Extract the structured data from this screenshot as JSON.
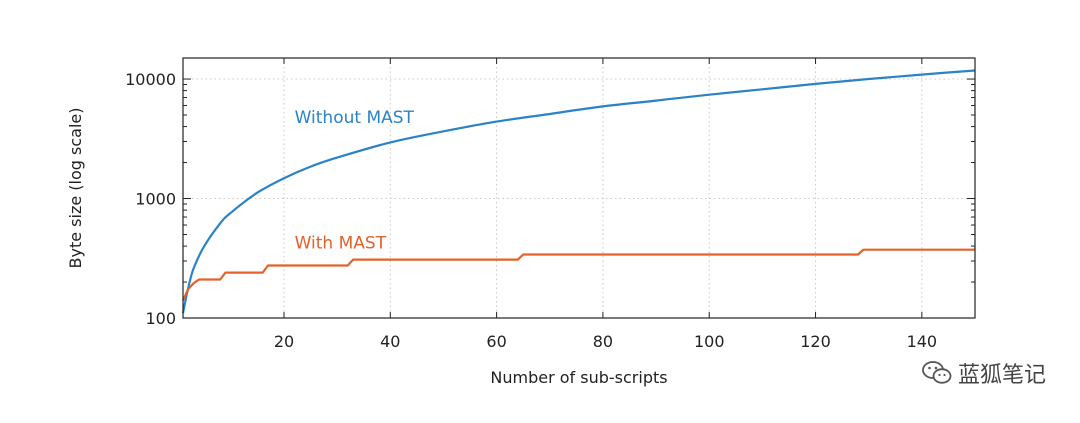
{
  "chart_data": {
    "type": "line",
    "xlabel": "Number of sub-scripts",
    "ylabel": "Byte size (log scale)",
    "xlim": [
      1,
      150
    ],
    "ylim": [
      100,
      15000
    ],
    "yscale": "log",
    "grid": true,
    "x_ticks": [
      20,
      40,
      60,
      80,
      100,
      120,
      140
    ],
    "y_ticks": [
      100,
      1000,
      10000
    ],
    "series": [
      {
        "name": "Without MAST",
        "color": "#2b83c6",
        "x": [
          1,
          2,
          3,
          5,
          8,
          10,
          15,
          20,
          25,
          30,
          40,
          50,
          60,
          70,
          80,
          90,
          100,
          110,
          120,
          130,
          140,
          150
        ],
        "y": [
          110,
          180,
          260,
          400,
          620,
          760,
          1120,
          1480,
          1850,
          2200,
          2950,
          3650,
          4400,
          5100,
          5900,
          6600,
          7400,
          8200,
          9100,
          10000,
          10900,
          11800
        ]
      },
      {
        "name": "With MAST",
        "color": "#e2622a",
        "x": [
          1,
          2,
          3,
          4,
          4,
          8,
          9,
          16,
          17,
          32,
          33,
          64,
          65,
          128,
          129,
          150
        ],
        "y": [
          140,
          175,
          195,
          210,
          210,
          210,
          240,
          240,
          275,
          275,
          308,
          308,
          340,
          340,
          373,
          373
        ]
      }
    ],
    "annotations": [
      {
        "text": "Without MAST",
        "x": 22,
        "y": 4300
      },
      {
        "text": "With MAST",
        "x": 22,
        "y": 380
      }
    ]
  },
  "watermark": {
    "text": "蓝狐笔记",
    "icon": "wechat-icon"
  }
}
